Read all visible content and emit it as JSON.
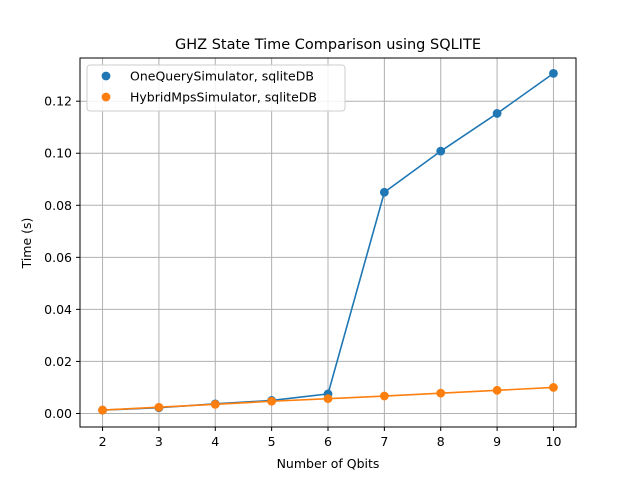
{
  "chart_data": {
    "type": "line",
    "title": "GHZ State Time Comparison using SQLITE",
    "xlabel": "Number of Qbits",
    "ylabel": "Time (s)",
    "x": [
      2,
      3,
      4,
      5,
      6,
      7,
      8,
      9,
      10
    ],
    "xlim": [
      1.6,
      10.4
    ],
    "ylim": [
      -0.0052,
      0.1366
    ],
    "xticks": [
      2,
      3,
      4,
      5,
      6,
      7,
      8,
      9,
      10
    ],
    "yticks": [
      0.0,
      0.02,
      0.04,
      0.06,
      0.08,
      0.1,
      0.12
    ],
    "grid": true,
    "legend_position": "upper-left",
    "series": [
      {
        "name": "OneQuerySimulator, sqliteDB",
        "color": "#1f77b4",
        "values": [
          0.0013,
          0.0022,
          0.0037,
          0.005,
          0.0075,
          0.085,
          0.1008,
          0.1153,
          0.1307
        ]
      },
      {
        "name": "HybridMpsSimulator, sqliteDB",
        "color": "#ff7f0e",
        "values": [
          0.0013,
          0.0024,
          0.0035,
          0.0047,
          0.0057,
          0.0067,
          0.0078,
          0.0089,
          0.01
        ]
      }
    ]
  }
}
